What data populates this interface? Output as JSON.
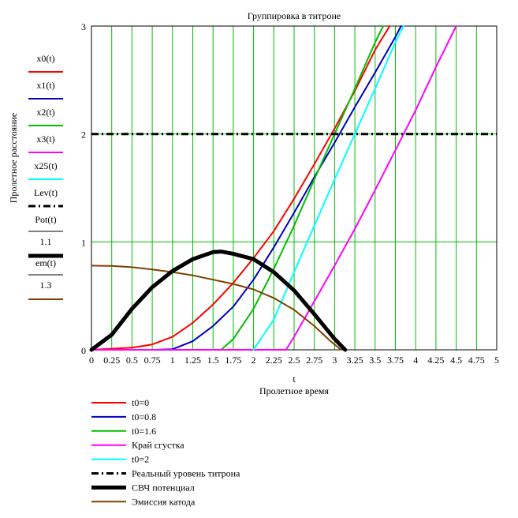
{
  "chart_data": {
    "type": "line",
    "title": "Группировка в титроне",
    "xlabel_var": "t",
    "xlabel": "Пролетное время",
    "ylabel": "Пролетное расстояние",
    "xlim": [
      0,
      5
    ],
    "ylim": [
      0,
      3
    ],
    "x_ticks": [
      "0",
      "0.25",
      "0.5",
      "0.75",
      "1",
      "1.25",
      "1.5",
      "1.75",
      "2",
      "2.25",
      "2.5",
      "2.75",
      "3",
      "3.25",
      "3.5",
      "3.75",
      "4",
      "4.25",
      "4.5",
      "4.75",
      "5"
    ],
    "y_ticks": [
      "0",
      "1",
      "2",
      "3"
    ],
    "grid": true,
    "series": [
      {
        "key": "x0",
        "axis_label": "x0(t)",
        "name": "t0=0",
        "color": "#ff0000",
        "style": "solid",
        "points": [
          [
            0,
            0
          ],
          [
            0.5,
            0.02
          ],
          [
            0.75,
            0.05
          ],
          [
            1,
            0.12
          ],
          [
            1.25,
            0.25
          ],
          [
            1.5,
            0.42
          ],
          [
            1.75,
            0.62
          ],
          [
            2,
            0.85
          ],
          [
            2.25,
            1.1
          ],
          [
            2.5,
            1.4
          ],
          [
            2.75,
            1.72
          ],
          [
            3,
            2.05
          ],
          [
            3.25,
            2.4
          ],
          [
            3.5,
            2.78
          ],
          [
            3.68,
            3.0
          ]
        ]
      },
      {
        "key": "x1",
        "axis_label": "x1(t)",
        "name": "t0=0.8",
        "color": "#0000c0",
        "style": "solid",
        "points": [
          [
            0.8,
            0
          ],
          [
            1,
            0.005
          ],
          [
            1.25,
            0.08
          ],
          [
            1.5,
            0.22
          ],
          [
            1.75,
            0.4
          ],
          [
            2,
            0.65
          ],
          [
            2.25,
            0.95
          ],
          [
            2.5,
            1.27
          ],
          [
            2.75,
            1.6
          ],
          [
            3,
            1.92
          ],
          [
            3.25,
            2.25
          ],
          [
            3.5,
            2.57
          ],
          [
            3.75,
            2.9
          ],
          [
            3.82,
            3.0
          ]
        ]
      },
      {
        "key": "x2",
        "axis_label": "x2(t)",
        "name": "t0=1.6",
        "color": "#00c000",
        "style": "solid",
        "points": [
          [
            1.6,
            0
          ],
          [
            1.75,
            0.1
          ],
          [
            2,
            0.38
          ],
          [
            2.25,
            0.75
          ],
          [
            2.5,
            1.15
          ],
          [
            2.75,
            1.58
          ],
          [
            3,
            2.0
          ],
          [
            3.25,
            2.42
          ],
          [
            3.5,
            2.85
          ],
          [
            3.6,
            3.0
          ]
        ]
      },
      {
        "key": "x3",
        "axis_label": "x3(t)",
        "name": "Край сгустка",
        "color": "#ff00ff",
        "style": "solid",
        "points": [
          [
            0,
            0
          ],
          [
            2.4,
            0
          ],
          [
            2.5,
            0.12
          ],
          [
            2.75,
            0.45
          ],
          [
            3,
            0.78
          ],
          [
            3.25,
            1.12
          ],
          [
            3.5,
            1.48
          ],
          [
            3.75,
            1.85
          ],
          [
            4,
            2.22
          ],
          [
            4.25,
            2.62
          ],
          [
            4.5,
            3.0
          ]
        ]
      },
      {
        "key": "x25",
        "axis_label": "x25(t)",
        "name": "t0=2",
        "color": "#00ffff",
        "style": "solid",
        "points": [
          [
            2,
            0
          ],
          [
            2.25,
            0.28
          ],
          [
            2.5,
            0.72
          ],
          [
            2.75,
            1.15
          ],
          [
            3,
            1.58
          ],
          [
            3.25,
            2.0
          ],
          [
            3.5,
            2.42
          ],
          [
            3.75,
            2.85
          ],
          [
            3.85,
            3.0
          ]
        ]
      },
      {
        "key": "Lev",
        "axis_label": "Lev(t)",
        "name": "Реальный уровень титрона",
        "color": "#000000",
        "style": "dashdot",
        "points": [
          [
            0,
            2
          ],
          [
            5,
            2
          ]
        ]
      },
      {
        "key": "Pot",
        "axis_label": "Pot(t)",
        "axis_divisor": "1.1",
        "name": "СВЧ потенциал",
        "color": "#000000",
        "style": "thick",
        "points": [
          [
            0,
            0
          ],
          [
            0.25,
            0.14
          ],
          [
            0.5,
            0.38
          ],
          [
            0.75,
            0.58
          ],
          [
            1,
            0.73
          ],
          [
            1.25,
            0.84
          ],
          [
            1.5,
            0.905
          ],
          [
            1.6,
            0.91
          ],
          [
            1.75,
            0.89
          ],
          [
            2,
            0.84
          ],
          [
            2.25,
            0.72
          ],
          [
            2.5,
            0.55
          ],
          [
            2.75,
            0.33
          ],
          [
            3,
            0.1
          ],
          [
            3.13,
            0
          ]
        ]
      },
      {
        "key": "em",
        "axis_label": "em(t)",
        "axis_divisor": "1.3",
        "name": "Эмиссия катода",
        "color": "#804000",
        "style": "solid",
        "points": [
          [
            0,
            0.78
          ],
          [
            0.25,
            0.777
          ],
          [
            0.5,
            0.765
          ],
          [
            0.75,
            0.745
          ],
          [
            1,
            0.72
          ],
          [
            1.25,
            0.69
          ],
          [
            1.5,
            0.65
          ],
          [
            1.75,
            0.61
          ],
          [
            2,
            0.56
          ],
          [
            2.25,
            0.48
          ],
          [
            2.5,
            0.37
          ],
          [
            2.75,
            0.22
          ],
          [
            2.95,
            0.08
          ],
          [
            3.08,
            0
          ]
        ]
      }
    ],
    "legend_placement": "bottom-left"
  }
}
